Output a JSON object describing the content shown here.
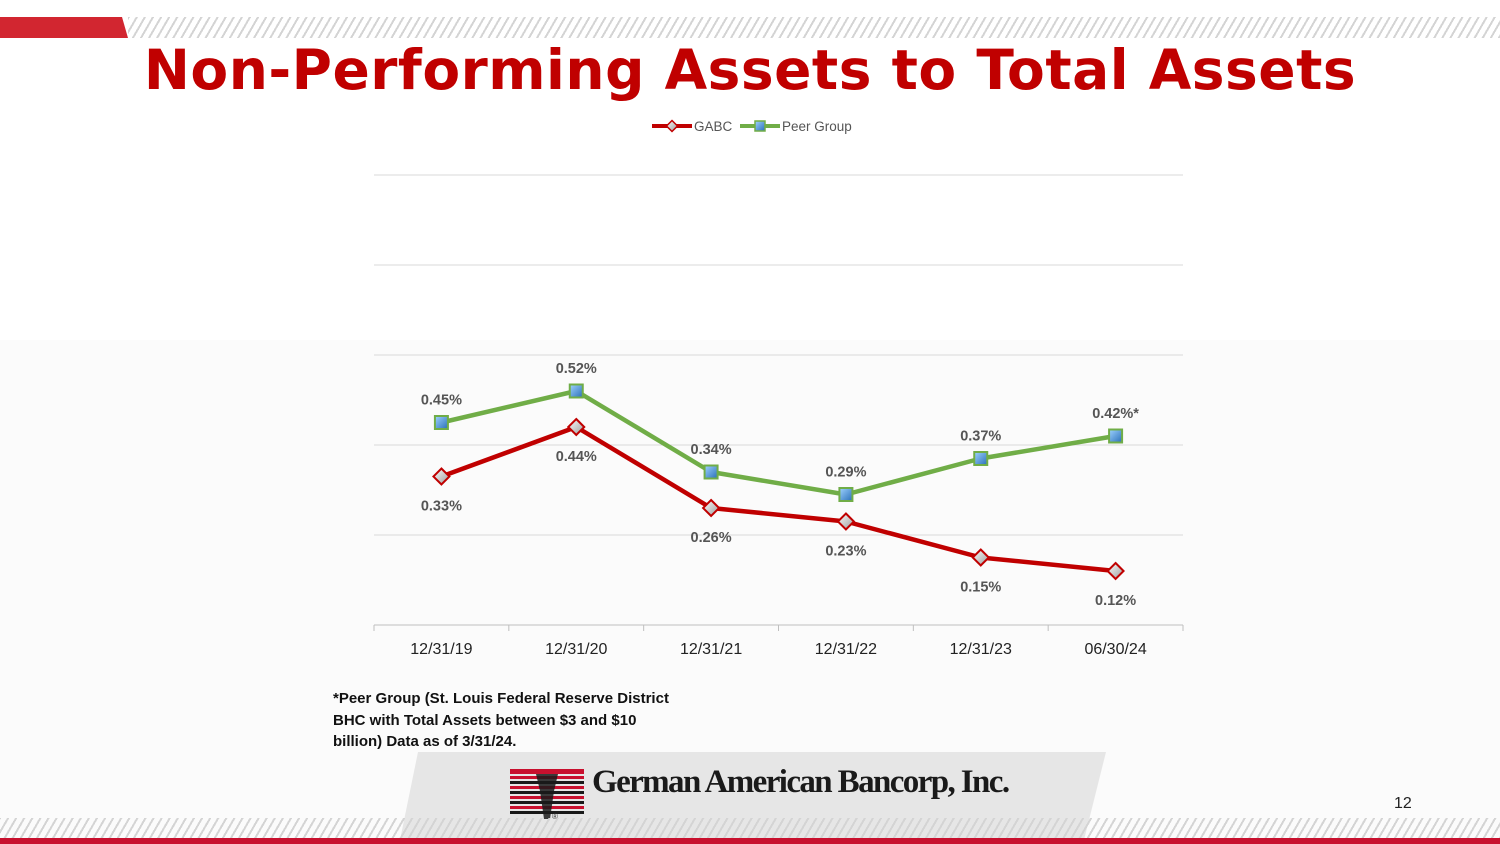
{
  "slide": {
    "title": "Non-Performing Assets to Total Assets",
    "page_number": "12",
    "footnote_lines": [
      "*Peer Group (St. Louis Federal Reserve District",
      "BHC with Total Assets between $3 and $10",
      "billion) Data as of 3/31/24."
    ],
    "logo": {
      "company": "German American Bancorp, Inc.",
      "registered": "®"
    }
  },
  "colors": {
    "title": "#c00000",
    "gabc": "#c00000",
    "peer": "#70ad47",
    "gridline": "#d9d9d9",
    "accent_red": "#d22630"
  },
  "chart_data": {
    "type": "line",
    "categories": [
      "12/31/19",
      "12/31/20",
      "12/31/21",
      "12/31/22",
      "12/31/23",
      "06/30/24"
    ],
    "ylim": [
      0,
      1.0
    ],
    "ystep": 0.2,
    "grid": true,
    "legend_position": "top-center",
    "series": [
      {
        "name": "GABC",
        "values": [
          0.33,
          0.44,
          0.26,
          0.23,
          0.15,
          0.12
        ],
        "labels": [
          "0.33%",
          "0.44%",
          "0.26%",
          "0.23%",
          "0.15%",
          "0.12%"
        ],
        "label_position": "below",
        "marker": "diamond"
      },
      {
        "name": "Peer Group",
        "values": [
          0.45,
          0.52,
          0.34,
          0.29,
          0.37,
          0.42
        ],
        "labels": [
          "0.45%",
          "0.52%",
          "0.34%",
          "0.29%",
          "0.37%",
          "0.42%*"
        ],
        "label_position": "above",
        "marker": "square"
      }
    ]
  }
}
